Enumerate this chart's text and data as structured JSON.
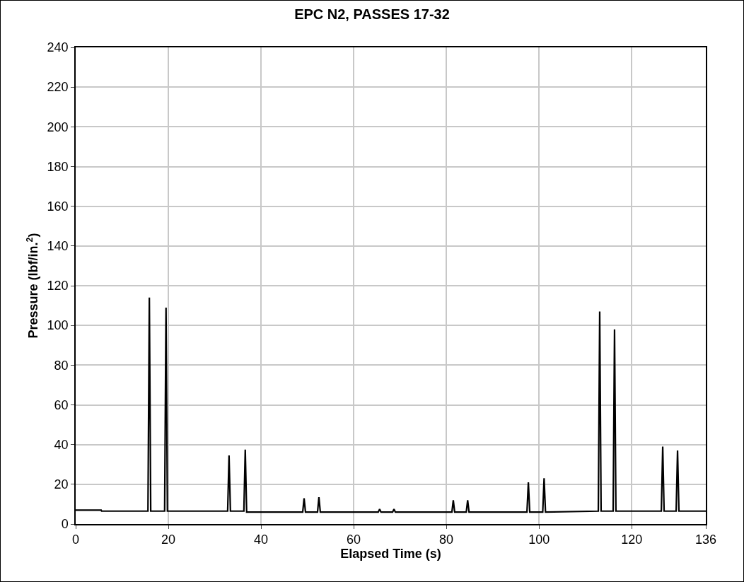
{
  "chart_data": {
    "type": "line",
    "title": "EPC N2, PASSES 17-32",
    "xlabel": "Elapsed Time (s)",
    "ylabel": "Pressure (lbf/in.$^{2}$)",
    "x": [
      0,
      5.5,
      5.6,
      15.6,
      15.9,
      16.2,
      19.2,
      19.5,
      19.8,
      32.8,
      33.1,
      33.4,
      36.3,
      36.6,
      36.9,
      49.0,
      49.3,
      49.6,
      52.2,
      52.5,
      52.8,
      65.3,
      65.6,
      65.9,
      68.4,
      68.7,
      69.0,
      81.2,
      81.5,
      81.8,
      84.3,
      84.6,
      84.9,
      97.4,
      97.7,
      98.0,
      100.8,
      101.1,
      101.4,
      112.8,
      113.1,
      113.4,
      116.0,
      116.3,
      116.6,
      126.4,
      126.7,
      127.0,
      129.6,
      129.9,
      130.2,
      136
    ],
    "series": [
      {
        "color": "#000000",
        "values": [
          7,
          7,
          6.5,
          6.5,
          114,
          6.5,
          6.5,
          109,
          6.5,
          6.5,
          34.5,
          6.5,
          6.5,
          37.5,
          6,
          6,
          13,
          6,
          6,
          13.5,
          6,
          6,
          7.5,
          6,
          6,
          7.5,
          6,
          6,
          12,
          6,
          6,
          12,
          6,
          6,
          21,
          6,
          6,
          23,
          6,
          6.5,
          107,
          6.5,
          6.5,
          98,
          6.5,
          6.5,
          39,
          6.5,
          6.5,
          37,
          6.5,
          6.5
        ]
      }
    ],
    "xlim": [
      0,
      136
    ],
    "xticks": [
      0,
      20,
      40,
      60,
      80,
      100,
      120,
      136
    ],
    "ylim": [
      0,
      240
    ],
    "yticks": [
      0,
      20,
      40,
      60,
      80,
      100,
      120,
      140,
      160,
      180,
      200,
      220,
      240
    ],
    "grid": true,
    "legend": false,
    "marker": "none",
    "line_style": "solid"
  }
}
